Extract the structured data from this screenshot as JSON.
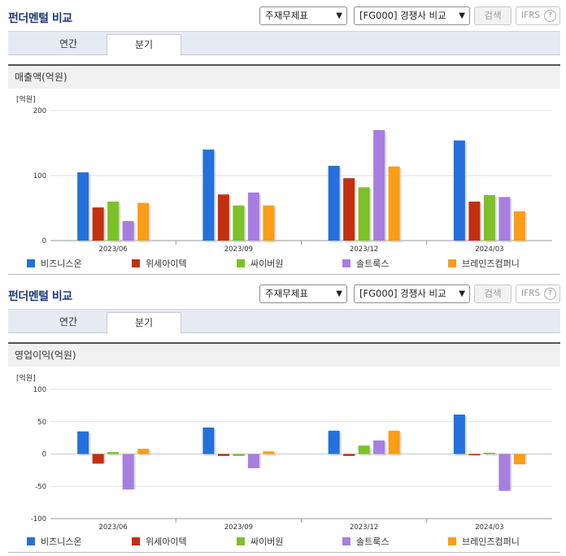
{
  "colors": {
    "series": [
      "#2470dc",
      "#c33010",
      "#7cc127",
      "#a77ee0",
      "#fb9d15"
    ],
    "title": "#1e3a78",
    "grid": "#e2e2e2",
    "axis": "#999999"
  },
  "legend": [
    "비즈니스온",
    "위세아이텍",
    "싸이버원",
    "솔트룩스",
    "브레인즈컴퍼니"
  ],
  "panels": [
    {
      "title": "펀더멘털 비교",
      "select1": "주재무제표",
      "select2": "[FG000] 경쟁사 비교",
      "search_label": "검색",
      "ifrs_label": "IFRS",
      "ifrs_help": "?",
      "tabs": [
        "연간",
        "분기"
      ],
      "active_tab": 1,
      "section_title": "매출액(억원)"
    },
    {
      "title": "펀더멘털 비교",
      "select1": "주재무제표",
      "select2": "[FG000] 경쟁사 비교",
      "search_label": "검색",
      "ifrs_label": "IFRS",
      "ifrs_help": "?",
      "tabs": [
        "연간",
        "분기"
      ],
      "active_tab": 1,
      "section_title": "영업이익(억원)"
    }
  ],
  "chart_data": [
    {
      "type": "bar",
      "title": "매출액(억원)",
      "unit_label": "[억원]",
      "categories": [
        "2023/06",
        "2023/09",
        "2023/12",
        "2024/03"
      ],
      "ylim": [
        0,
        200
      ],
      "yticks": [
        0,
        100,
        200
      ],
      "series": [
        {
          "name": "비즈니스온",
          "values": [
            105,
            140,
            115,
            154
          ]
        },
        {
          "name": "위세아이텍",
          "values": [
            51,
            71,
            96,
            60
          ]
        },
        {
          "name": "싸이버원",
          "values": [
            60,
            54,
            82,
            70
          ]
        },
        {
          "name": "솔트룩스",
          "values": [
            30,
            74,
            170,
            67
          ]
        },
        {
          "name": "브레인즈컴퍼니",
          "values": [
            58,
            54,
            114,
            45
          ]
        }
      ],
      "grid": true,
      "legend_position": "bottom"
    },
    {
      "type": "bar",
      "title": "영업이익(억원)",
      "unit_label": "[억원]",
      "categories": [
        "2023/06",
        "2023/09",
        "2023/12",
        "2024/03"
      ],
      "ylim": [
        -100,
        100
      ],
      "yticks": [
        -100,
        -50,
        0,
        50,
        100
      ],
      "series": [
        {
          "name": "비즈니스온",
          "values": [
            35,
            41,
            36,
            61
          ]
        },
        {
          "name": "위세아이텍",
          "values": [
            -15,
            -3,
            -3,
            -2
          ]
        },
        {
          "name": "싸이버원",
          "values": [
            3,
            -3,
            13,
            2
          ]
        },
        {
          "name": "솔트룩스",
          "values": [
            -55,
            -22,
            21,
            -57
          ]
        },
        {
          "name": "브레인즈컴퍼니",
          "values": [
            8,
            4,
            36,
            -16
          ]
        }
      ],
      "grid": true,
      "legend_position": "bottom"
    }
  ]
}
